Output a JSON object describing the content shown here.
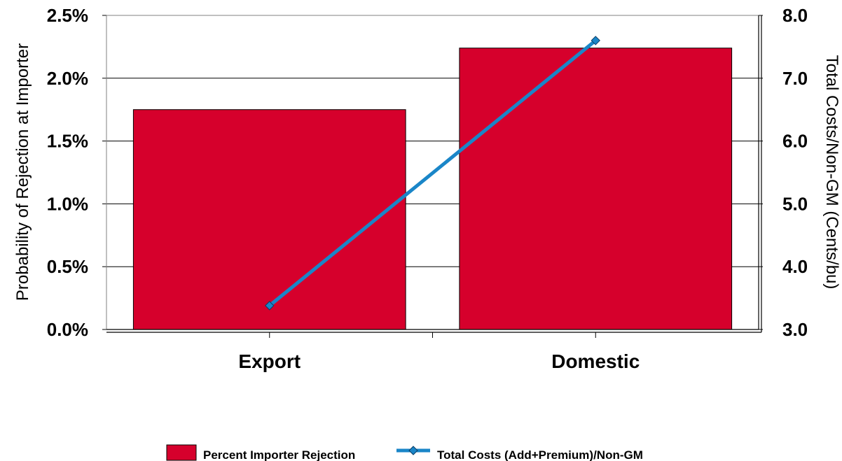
{
  "chart_data": {
    "type": "bar",
    "categories": [
      "Export",
      "Domestic"
    ],
    "ylabel": "Probability of Rejection at Importer",
    "y2label": "Total Costs/Non-GM (Cents/bu)",
    "ylim": [
      0,
      2.5
    ],
    "y2lim": [
      3.0,
      8.0
    ],
    "yticks": [
      "0.0%",
      "0.5%",
      "1.0%",
      "1.5%",
      "2.0%",
      "2.5%"
    ],
    "y2ticks": [
      "3.0",
      "4.0",
      "5.0",
      "6.0",
      "7.0",
      "8.0"
    ],
    "grid": true,
    "legend_position": "bottom",
    "series": [
      {
        "name": "Percent Importer Rejection",
        "type": "bar",
        "axis": "left",
        "unit": "%",
        "values": [
          1.75,
          2.24
        ],
        "color": "#d6002c"
      },
      {
        "name": "Total Costs (Add+Premium)/Non-GM",
        "type": "line",
        "axis": "right",
        "marker": "diamond",
        "values": [
          3.38,
          7.6
        ],
        "color": "#1a86c8"
      }
    ]
  }
}
